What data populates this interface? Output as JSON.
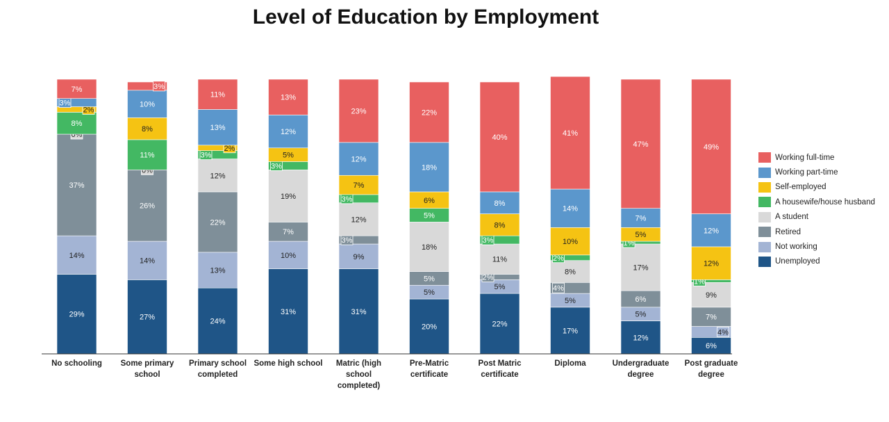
{
  "chart_data": {
    "type": "bar",
    "stacked": true,
    "title": "Level of Education by Employment",
    "xlabel": "",
    "ylabel": "",
    "ylim": [
      0,
      100
    ],
    "grid": false,
    "legend_position": "right",
    "categories": [
      "No schooling",
      "Some primary school",
      "Primary school completed",
      "Some high school",
      "Matric (high school completed)",
      "Pre-Matric certificate",
      "Post Matric certificate",
      "Diploma",
      "Undergraduate degree",
      "Post graduate degree"
    ],
    "category_lines": [
      [
        "No schooling"
      ],
      [
        "Some primary",
        "school"
      ],
      [
        "Primary school",
        "completed"
      ],
      [
        "Some high school"
      ],
      [
        "Matric (high",
        "school",
        "completed)"
      ],
      [
        "Pre-Matric",
        "certificate"
      ],
      [
        "Post Matric",
        "certificate"
      ],
      [
        "Diploma"
      ],
      [
        "Undergraduate",
        "degree"
      ],
      [
        "Post graduate",
        "degree"
      ]
    ],
    "series": [
      {
        "name": "Unemployed",
        "color": "#1f5587",
        "label_color": "#ffffff",
        "values": [
          29,
          27,
          24,
          31,
          31,
          20,
          22,
          17,
          12,
          6
        ]
      },
      {
        "name": "Not working",
        "color": "#a3b4d4",
        "label_color": "#222222",
        "values": [
          14,
          14,
          13,
          10,
          9,
          5,
          5,
          5,
          5,
          4
        ]
      },
      {
        "name": "Retired",
        "color": "#7f8f99",
        "label_color": "#ffffff",
        "values": [
          37,
          26,
          22,
          7,
          3,
          5,
          2,
          4,
          6,
          7
        ]
      },
      {
        "name": "A student",
        "color": "#d9d9d9",
        "label_color": "#222222",
        "values": [
          0,
          0,
          12,
          19,
          12,
          18,
          11,
          8,
          17,
          9
        ]
      },
      {
        "name": "A housewife/house husband",
        "color": "#43b863",
        "label_color": "#ffffff",
        "values": [
          8,
          11,
          3,
          3,
          3,
          5,
          3,
          2,
          1,
          1
        ]
      },
      {
        "name": "Self-employed",
        "color": "#f5c313",
        "label_color": "#222222",
        "values": [
          2,
          8,
          2,
          5,
          7,
          6,
          8,
          10,
          5,
          12
        ]
      },
      {
        "name": "Working part-time",
        "color": "#5b97cc",
        "label_color": "#ffffff",
        "values": [
          3,
          10,
          13,
          12,
          12,
          18,
          8,
          14,
          7,
          12
        ]
      },
      {
        "name": "Working full-time",
        "color": "#e86060",
        "label_color": "#ffffff",
        "values": [
          7,
          3,
          11,
          13,
          23,
          22,
          40,
          41,
          47,
          49
        ]
      }
    ],
    "legend_order": [
      "Working full-time",
      "Working part-time",
      "Self-employed",
      "A housewife/house husband",
      "A student",
      "Retired",
      "Not working",
      "Unemployed"
    ]
  }
}
